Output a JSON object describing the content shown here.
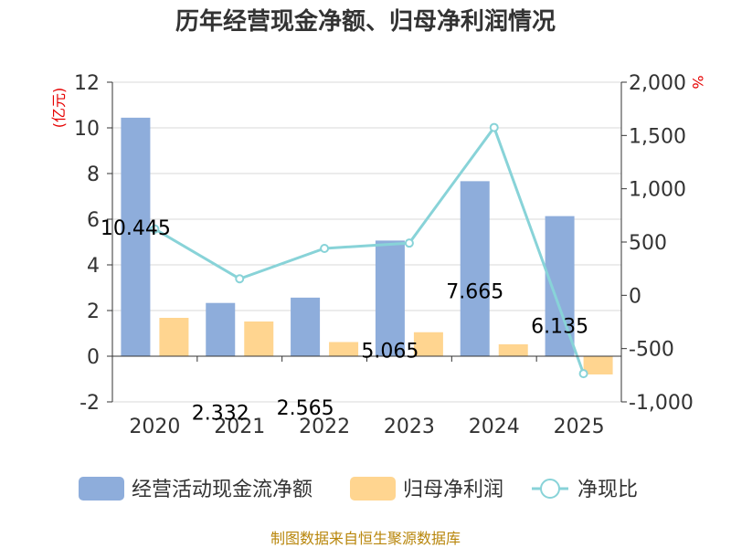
{
  "chart_data": {
    "type": "bar",
    "title": "历年经营现金净额、归母净利润情况",
    "categories": [
      "2020",
      "2021",
      "2022",
      "2023",
      "2024",
      "2025"
    ],
    "series": [
      {
        "name": "经营活动现金流净额",
        "kind": "bar",
        "axis": "left",
        "color": "#8eaddb",
        "values": [
          10.445,
          2.332,
          2.565,
          5.065,
          7.665,
          6.135
        ],
        "labels": [
          "10.445",
          "2.332",
          "2.565",
          "5.065",
          "7.665",
          "6.135"
        ]
      },
      {
        "name": "归母净利润",
        "kind": "bar",
        "axis": "left",
        "color": "#ffd590",
        "values": [
          1.68,
          1.52,
          0.62,
          1.05,
          0.52,
          -0.8
        ]
      },
      {
        "name": "净现比",
        "kind": "line",
        "axis": "right",
        "color": "#88d3d8",
        "values": [
          622,
          155,
          440,
          490,
          1575,
          -735
        ]
      }
    ],
    "y_left": {
      "unit": "(亿元)",
      "ylim": [
        -2,
        12
      ],
      "ticks": [
        {
          "v": 12,
          "t": "12"
        },
        {
          "v": 10,
          "t": "10"
        },
        {
          "v": 8,
          "t": "8"
        },
        {
          "v": 6,
          "t": "6"
        },
        {
          "v": 4,
          "t": "4"
        },
        {
          "v": 2,
          "t": "2"
        },
        {
          "v": 0,
          "t": "0"
        },
        {
          "v": -2,
          "t": "-2"
        }
      ]
    },
    "y_right": {
      "unit": "%",
      "ylim": [
        -1000,
        2000
      ],
      "ticks": [
        {
          "v": 2000,
          "t": "2,000"
        },
        {
          "v": 1500,
          "t": "1,500"
        },
        {
          "v": 1000,
          "t": "1,000"
        },
        {
          "v": 500,
          "t": "500"
        },
        {
          "v": 0,
          "t": "0"
        },
        {
          "v": -500,
          "t": "-500"
        },
        {
          "v": -1000,
          "t": "-1,000"
        }
      ]
    },
    "grid": true,
    "legend_position": "bottom"
  },
  "footer": "制图数据来自恒生聚源数据库"
}
